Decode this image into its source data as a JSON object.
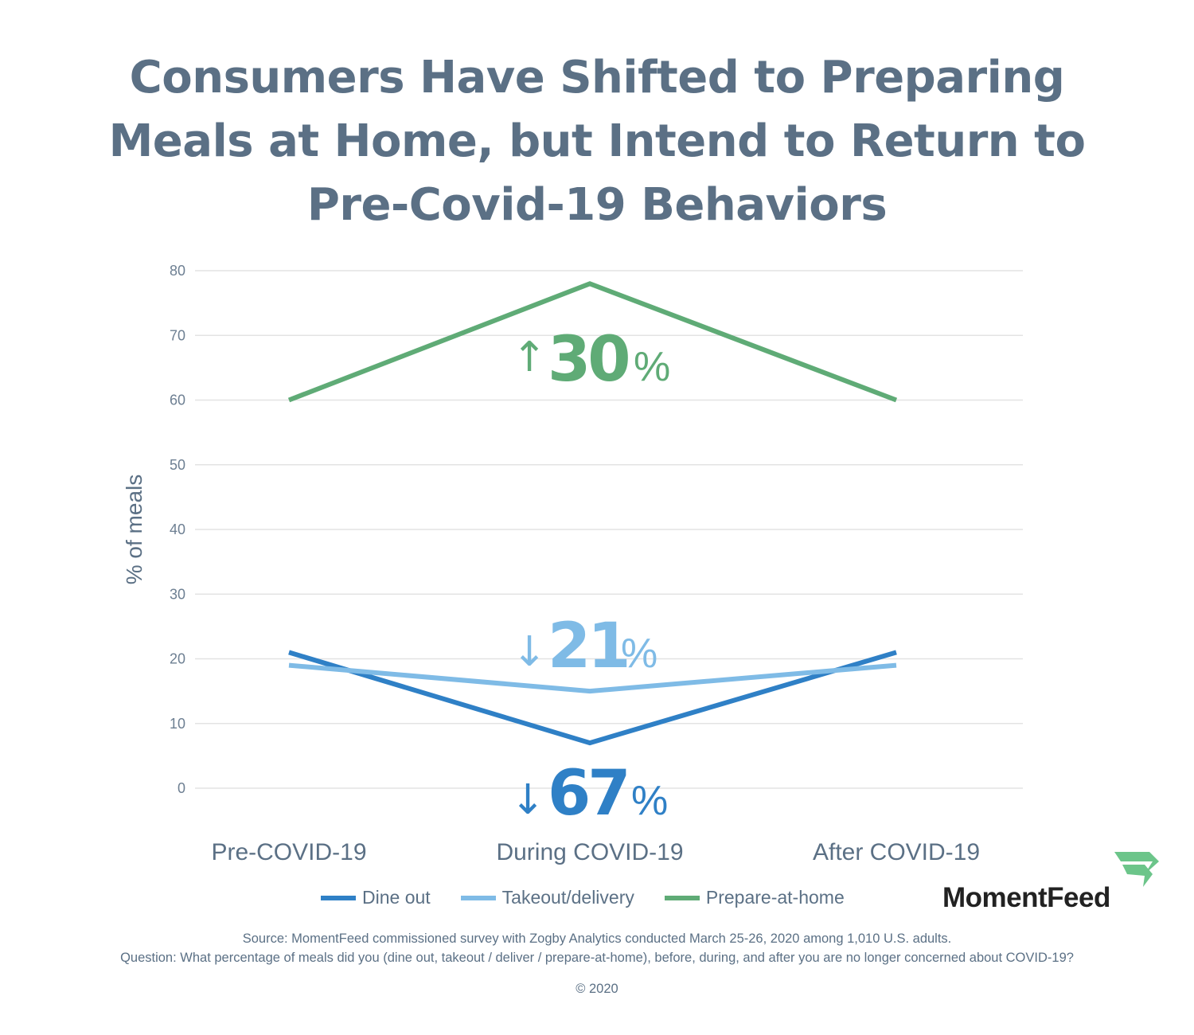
{
  "title": {
    "lines": [
      "Consumers Have Shifted to Preparing",
      "Meals at Home, but Intend to Return to",
      "Pre-Covid-19 Behaviors"
    ]
  },
  "chart_data": {
    "type": "line",
    "title": "Consumers Have Shifted to Preparing Meals at Home, but Intend to Return to Pre-Covid-19 Behaviors",
    "xlabel": "",
    "ylabel": "% of meals",
    "categories": [
      "Pre-COVID-19",
      "During COVID-19",
      "After COVID-19"
    ],
    "ylim": [
      0,
      80
    ],
    "yticks": [
      0,
      10,
      20,
      30,
      40,
      50,
      60,
      70,
      80
    ],
    "grid": true,
    "legend_position": "bottom",
    "series": [
      {
        "name": "Dine out",
        "color": "#2f80c6",
        "values": [
          21,
          7,
          21
        ]
      },
      {
        "name": "Takeout/delivery",
        "color": "#7fbbe6",
        "values": [
          19,
          15,
          19
        ]
      },
      {
        "name": "Prepare-at-home",
        "color": "#5fab76",
        "values": [
          60,
          78,
          60
        ]
      }
    ],
    "annotations": [
      {
        "series": "Prepare-at-home",
        "arrow": "↑",
        "value": "30",
        "unit": "%",
        "color": "#5fab76"
      },
      {
        "series": "Takeout/delivery",
        "arrow": "↓",
        "value": "21",
        "unit": "%",
        "color": "#7fbbe6"
      },
      {
        "series": "Dine out",
        "arrow": "↓",
        "value": "67",
        "unit": "%",
        "color": "#2f80c6"
      }
    ]
  },
  "legend": {
    "items": [
      {
        "label": "Dine out",
        "color": "#2f80c6"
      },
      {
        "label": "Takeout/delivery",
        "color": "#7fbbe6"
      },
      {
        "label": "Prepare-at-home",
        "color": "#5fab76"
      }
    ]
  },
  "brand": {
    "name": "MomentFeed",
    "logo_icon": "momentfeed-flag-icon",
    "logo_color": "#6cc58a"
  },
  "footer": {
    "source": "Source: MomentFeed commissioned survey with Zogby Analytics conducted March 25-26, 2020 among 1,010 U.S. adults.",
    "question": "Question: What percentage of meals did you (dine out, takeout / deliver / prepare-at-home), before, during, and after you are no longer concerned about COVID-19?",
    "copyright": "© 2020"
  }
}
